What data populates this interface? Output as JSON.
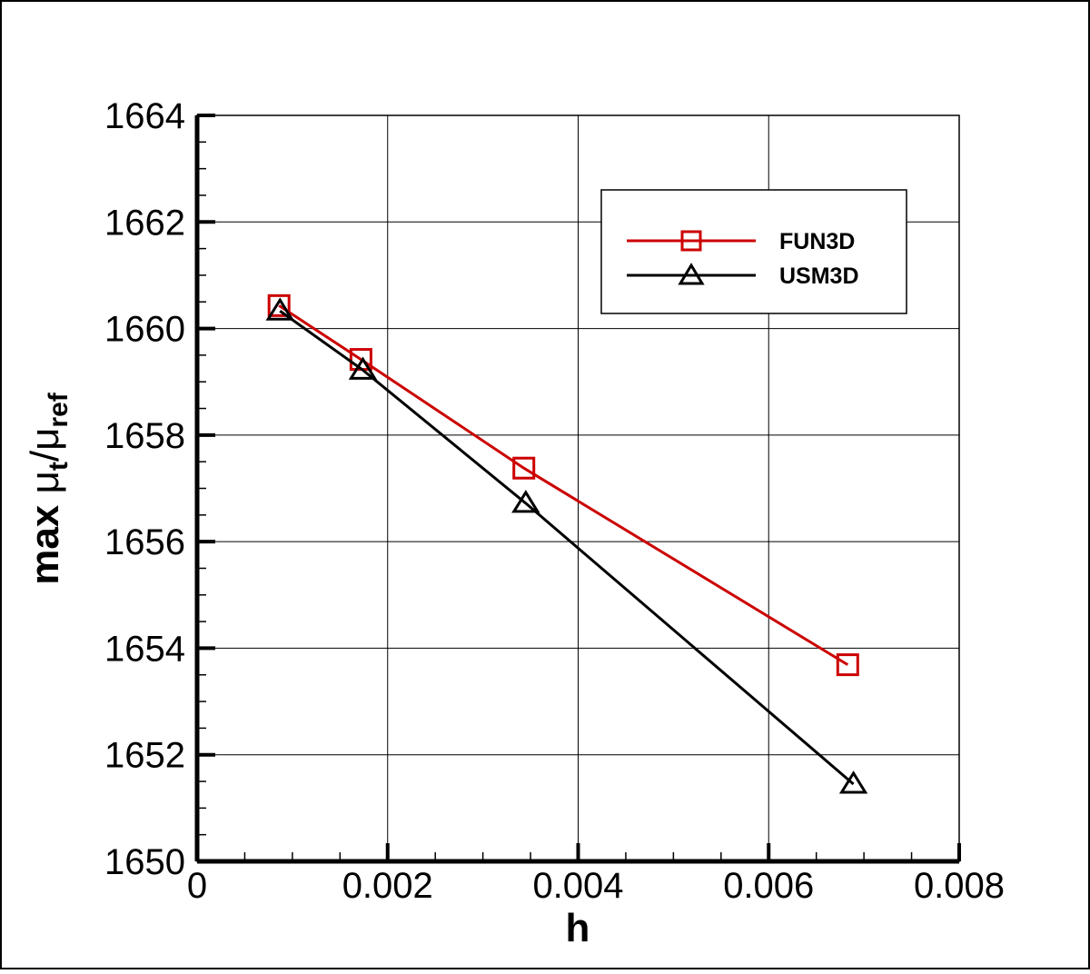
{
  "chart_data": {
    "type": "line",
    "xlabel": "h",
    "ylabel": {
      "prefix": "max ",
      "mu": "μ",
      "sub_t": "t",
      "slash": "/",
      "sub_ref": "ref"
    },
    "xlim": [
      0,
      0.008
    ],
    "ylim": [
      1650,
      1664
    ],
    "xticks": [
      0,
      0.002,
      0.004,
      0.006,
      0.008
    ],
    "xtick_labels": [
      "0",
      "0.002",
      "0.004",
      "0.006",
      "0.008"
    ],
    "yticks": [
      1650,
      1652,
      1654,
      1656,
      1658,
      1660,
      1662,
      1664
    ],
    "ytick_labels": [
      "1650",
      "1652",
      "1654",
      "1656",
      "1658",
      "1660",
      "1662",
      "1664"
    ],
    "x_minor_step": 0.0005,
    "y_minor_step": 0.5,
    "grid": true,
    "legend_position": "top-right",
    "series": [
      {
        "name": "FUN3D",
        "color": "#cc0000",
        "marker": "square",
        "points": [
          [
            0.00086,
            1660.43
          ],
          [
            0.00172,
            1659.42
          ],
          [
            0.00343,
            1657.38
          ],
          [
            0.00683,
            1653.69
          ]
        ]
      },
      {
        "name": "USM3D",
        "color": "#000000",
        "marker": "triangle",
        "points": [
          [
            0.00087,
            1660.33
          ],
          [
            0.00174,
            1659.22
          ],
          [
            0.00345,
            1656.72
          ],
          [
            0.00689,
            1651.45
          ]
        ]
      }
    ]
  }
}
